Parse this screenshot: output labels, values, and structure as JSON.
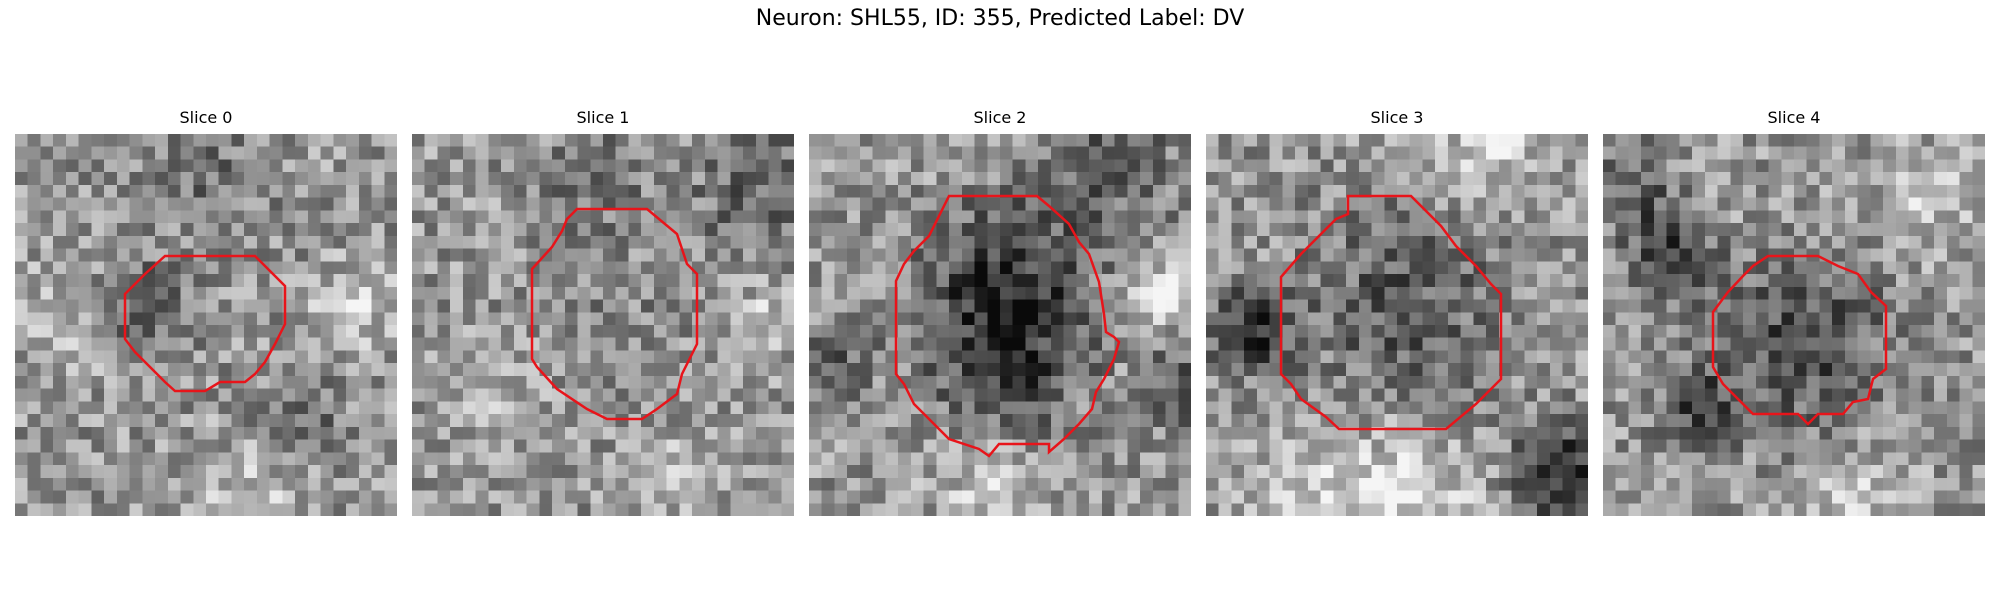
{
  "figure": {
    "title": "Neuron: SHL55, ID: 355, Predicted Label: DV"
  },
  "contour_color": "#e8141a",
  "panels": [
    {
      "title": "Slice 0"
    },
    {
      "title": "Slice 1"
    },
    {
      "title": "Slice 2"
    },
    {
      "title": "Slice 3"
    },
    {
      "title": "Slice 4"
    }
  ]
}
